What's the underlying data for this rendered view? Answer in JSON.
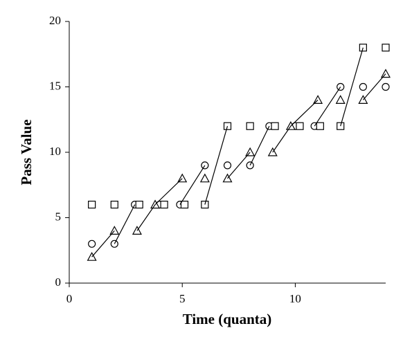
{
  "chart_data": {
    "type": "scatter",
    "x_label": "Time (quanta)",
    "y_label": "Pass Value",
    "xlim": [
      0,
      14
    ],
    "ylim": [
      0,
      20
    ],
    "xticks": [
      0,
      5,
      10
    ],
    "yticks": [
      0,
      5,
      10,
      15,
      20
    ],
    "color": "#000000",
    "series": [
      {
        "marker": "circle",
        "x": [
          1,
          2,
          2.9,
          4,
          4.9,
          6,
          7,
          8,
          8.85,
          10,
          10.85,
          12,
          13,
          14
        ],
        "values": [
          3,
          3,
          6,
          6,
          6,
          9,
          9,
          9,
          12,
          12,
          12,
          15,
          15,
          15
        ]
      },
      {
        "marker": "triangle",
        "x": [
          1,
          2,
          3,
          3.8,
          5,
          6,
          7,
          8,
          9,
          9.8,
          11,
          12,
          13,
          14
        ],
        "values": [
          2,
          4,
          4,
          6,
          8,
          8,
          8,
          10,
          10,
          12,
          14,
          14,
          14,
          16
        ]
      },
      {
        "marker": "square",
        "x": [
          1,
          2,
          3.1,
          4.2,
          5.1,
          6,
          7,
          8,
          9.1,
          10.2,
          11.1,
          12,
          13,
          14
        ],
        "values": [
          6,
          6,
          6,
          6,
          6,
          6,
          12,
          12,
          12,
          12,
          12,
          12,
          18,
          18
        ]
      },
      {
        "marker": "line",
        "x": [
          1,
          2,
          null,
          2,
          2.9,
          null,
          3,
          3.8,
          5,
          null,
          4.9,
          6,
          null,
          6,
          7,
          null,
          7,
          8,
          null,
          8,
          8.85,
          null,
          9,
          9.8,
          11,
          null,
          10.85,
          12,
          null,
          12,
          13,
          null,
          13,
          14
        ],
        "values": [
          2,
          4,
          null,
          3,
          6,
          null,
          4,
          6,
          8,
          null,
          6,
          9,
          null,
          6,
          12,
          null,
          8,
          10,
          null,
          9,
          12,
          null,
          10,
          12,
          14,
          null,
          12,
          15,
          null,
          12,
          18,
          null,
          14,
          16
        ]
      }
    ]
  }
}
